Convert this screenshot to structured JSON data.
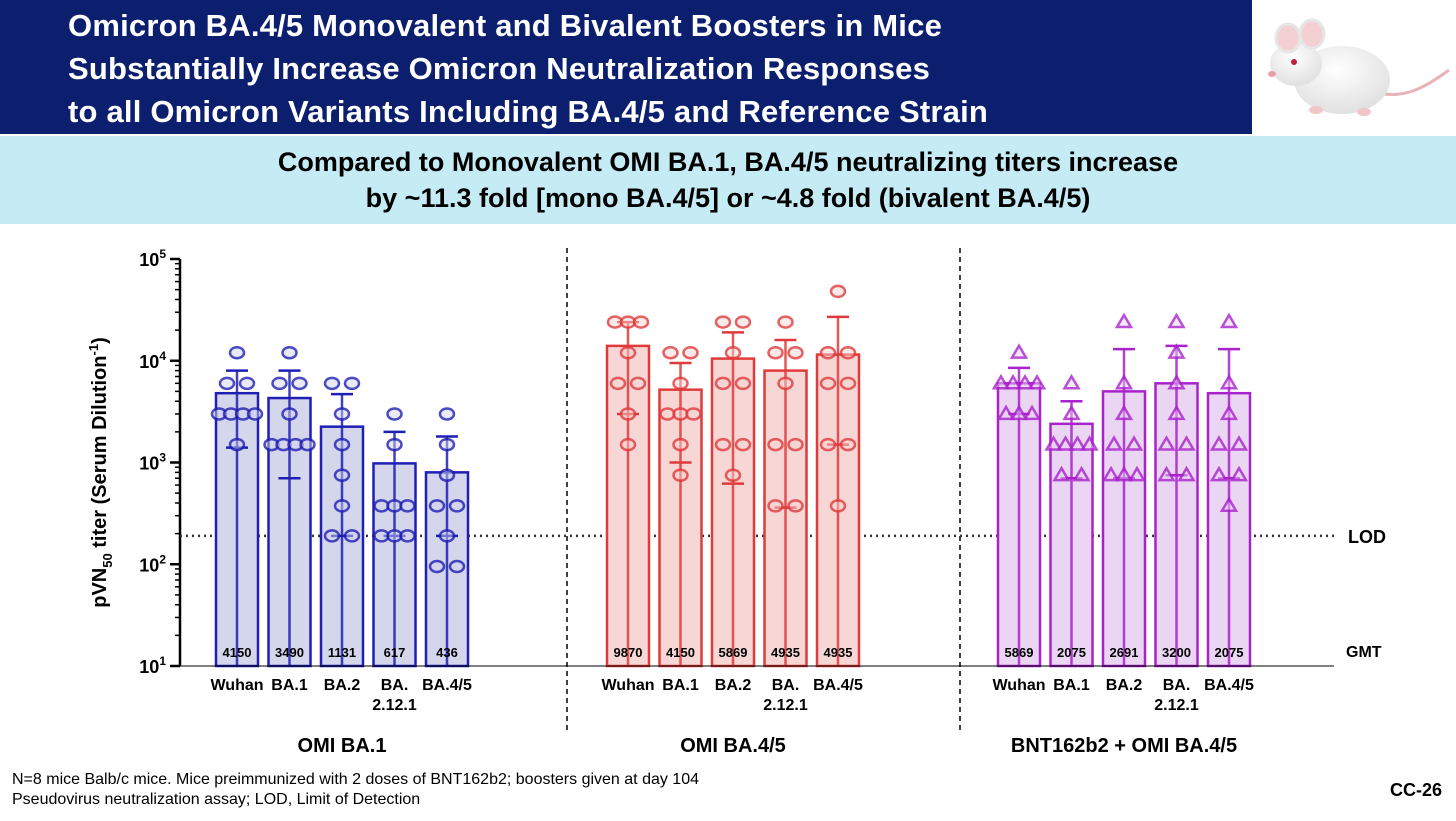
{
  "header": {
    "title_lines": [
      "Omicron BA.4/5 Monovalent and Bivalent Boosters in Mice",
      "Substantially Increase Omicron Neutralization Responses",
      "to all Omicron Variants Including BA.4/5 and Reference Strain"
    ],
    "image": "white-mouse"
  },
  "subtitle_lines": [
    "Compared to Monovalent OMI BA.1, BA.4/5 neutralizing titers increase",
    "by ~11.3 fold [mono BA.4/5] or ~4.8 fold (bivalent BA.4/5)"
  ],
  "chart_data": {
    "type": "bar",
    "y_scale": "log",
    "ylim": [
      10,
      100000
    ],
    "y_ticks": [
      {
        "base": "10",
        "exp": "1"
      },
      {
        "base": "10",
        "exp": "2"
      },
      {
        "base": "10",
        "exp": "3"
      },
      {
        "base": "10",
        "exp": "4"
      },
      {
        "base": "10",
        "exp": "5"
      }
    ],
    "ylabel": {
      "main": "pVN",
      "sub": "50",
      "mid": " titer (Serum Dilution",
      "sup": "-1",
      "end": ")"
    },
    "lod": {
      "label": "LOD",
      "value": 190
    },
    "gmt_label": "GMT",
    "groups": [
      {
        "name": "OMI BA.1",
        "color": "#1f1fb4",
        "fill": "#d4d6ec",
        "marker": "circle",
        "bars": [
          {
            "label": [
              "Wuhan"
            ],
            "gmt": "4150",
            "value": 4800,
            "err": [
              1400,
              8000
            ],
            "points": [
              12000,
              6000,
              6000,
              3000,
              3000,
              3000,
              3000,
              1500
            ]
          },
          {
            "label": [
              "BA.1"
            ],
            "gmt": "3490",
            "value": 4300,
            "err": [
              700,
              8000
            ],
            "points": [
              12000,
              6000,
              6000,
              3000,
              1500,
              1500,
              1500,
              1500
            ]
          },
          {
            "label": [
              "BA.2"
            ],
            "gmt": "1131",
            "value": 2250,
            "err": [
              190,
              4700
            ],
            "points": [
              6000,
              6000,
              3000,
              1500,
              750,
              375,
              190,
              190
            ]
          },
          {
            "label": [
              "BA.",
              "2.12.1"
            ],
            "gmt": "617",
            "value": 980,
            "err": [
              190,
              2000
            ],
            "points": [
              3000,
              1500,
              375,
              375,
              375,
              190,
              190,
              190
            ]
          },
          {
            "label": [
              "BA.4/5"
            ],
            "gmt": "436",
            "value": 800,
            "err": [
              190,
              1800
            ],
            "points": [
              3000,
              1500,
              750,
              375,
              375,
              190,
              95,
              95
            ]
          }
        ]
      },
      {
        "name": "OMI BA.4/5",
        "color": "#e03a3a",
        "fill": "#f7d6d6",
        "marker": "circle",
        "bars": [
          {
            "label": [
              "Wuhan"
            ],
            "gmt": "9870",
            "value": 14000,
            "err": [
              3000,
              24000
            ],
            "points": [
              24000,
              24000,
              24000,
              12000,
              6000,
              6000,
              3000,
              1500
            ]
          },
          {
            "label": [
              "BA.1"
            ],
            "gmt": "4150",
            "value": 5200,
            "err": [
              1000,
              9500
            ],
            "points": [
              12000,
              12000,
              6000,
              3000,
              3000,
              3000,
              1500,
              750
            ]
          },
          {
            "label": [
              "BA.2"
            ],
            "gmt": "5869",
            "value": 10500,
            "err": [
              620,
              19000
            ],
            "points": [
              24000,
              24000,
              12000,
              6000,
              6000,
              1500,
              1500,
              750
            ]
          },
          {
            "label": [
              "BA.",
              "2.12.1"
            ],
            "gmt": "4935",
            "value": 8000,
            "err": [
              360,
              16000
            ],
            "points": [
              24000,
              12000,
              12000,
              6000,
              1500,
              1500,
              375,
              375
            ]
          },
          {
            "label": [
              "BA.4/5"
            ],
            "gmt": "4935",
            "value": 11500,
            "err": [
              1500,
              27000
            ],
            "points": [
              48000,
              12000,
              12000,
              6000,
              6000,
              1500,
              1500,
              375
            ]
          }
        ]
      },
      {
        "name": "BNT162b2 + OMI BA.4/5",
        "color": "#aa22cc",
        "fill": "#ead6f2",
        "marker": "triangle",
        "bars": [
          {
            "label": [
              "Wuhan"
            ],
            "gmt": "5869",
            "value": 6000,
            "err": [
              3000,
              8500
            ],
            "points": [
              12000,
              6000,
              6000,
              6000,
              6000,
              3000,
              3000,
              3000
            ]
          },
          {
            "label": [
              "BA.1"
            ],
            "gmt": "2075",
            "value": 2400,
            "err": [
              700,
              4000
            ],
            "points": [
              6000,
              3000,
              1500,
              1500,
              1500,
              1500,
              750,
              750
            ]
          },
          {
            "label": [
              "BA.2"
            ],
            "gmt": "2691",
            "value": 5000,
            "err": [
              700,
              13000
            ],
            "points": [
              24000,
              6000,
              3000,
              1500,
              1500,
              750,
              750,
              750
            ]
          },
          {
            "label": [
              "BA.",
              "2.12.1"
            ],
            "gmt": "3200",
            "value": 6000,
            "err": [
              750,
              14000
            ],
            "points": [
              24000,
              12000,
              6000,
              3000,
              1500,
              1500,
              750,
              750
            ]
          },
          {
            "label": [
              "BA.4/5"
            ],
            "gmt": "2075",
            "value": 4800,
            "err": [
              700,
              13000
            ],
            "points": [
              24000,
              6000,
              3000,
              1500,
              1500,
              750,
              750,
              375
            ]
          }
        ]
      }
    ]
  },
  "footnote_lines": [
    "N=8 mice Balb/c mice. Mice preimmunized with 2 doses of BNT162b2; boosters given at day 104",
    "Pseudovirus neutralization assay; LOD, Limit of Detection"
  ],
  "slide_number": "CC-26"
}
